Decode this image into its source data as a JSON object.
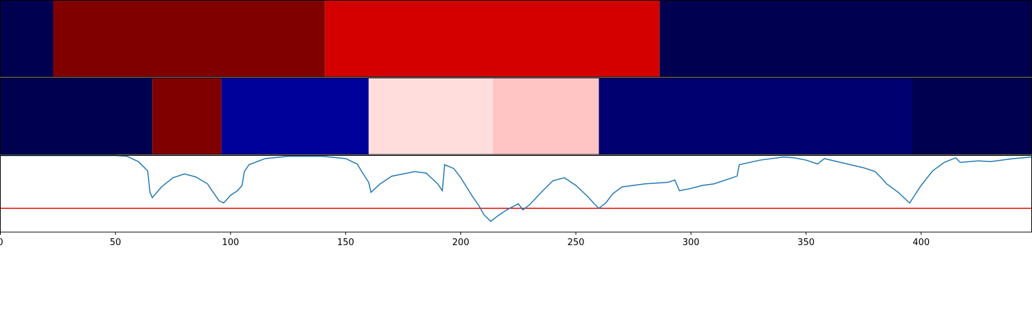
{
  "chart_data": {
    "type": "segmentation",
    "xlim": [
      0,
      448
    ],
    "xticks": [
      0,
      50,
      100,
      150,
      200,
      250,
      300,
      350,
      400
    ],
    "rows": [
      {
        "edges": [
          0,
          23,
          141,
          286.4,
          448
        ],
        "colors": [
          "#000050",
          "#800000",
          "#d40000",
          "#000050"
        ]
      },
      {
        "edges": [
          0,
          66,
          96,
          160,
          214,
          260,
          396,
          448
        ],
        "colors": [
          "#000050",
          "#800000",
          "#00009a",
          "#ffdddd",
          "#ffc4c4",
          "#000070",
          "#000050"
        ]
      }
    ],
    "line": {
      "color": "#1f77b4",
      "ylim": [
        0,
        1
      ],
      "x": [
        0,
        50,
        55,
        60,
        64,
        65,
        66,
        70,
        75,
        80,
        85,
        90,
        92,
        95,
        97,
        100,
        103,
        105,
        106,
        108,
        115,
        125,
        140,
        150,
        155,
        157,
        160,
        161,
        165,
        170,
        180,
        185,
        190,
        192,
        193,
        197,
        200,
        205,
        208,
        210,
        213,
        216,
        220,
        225,
        227,
        230,
        235,
        240,
        245,
        250,
        255,
        258,
        260,
        263,
        266,
        270,
        280,
        290,
        293,
        295,
        300,
        305,
        310,
        320,
        321,
        330,
        340,
        345,
        350,
        355,
        358,
        365,
        375,
        380,
        383,
        385,
        390,
        395,
        400,
        405,
        410,
        415,
        417,
        425,
        430,
        440,
        448
      ],
      "values": [
        1.0,
        1.0,
        0.99,
        0.92,
        0.8,
        0.52,
        0.45,
        0.59,
        0.71,
        0.76,
        0.72,
        0.63,
        0.54,
        0.41,
        0.38,
        0.48,
        0.54,
        0.61,
        0.79,
        0.88,
        0.96,
        0.99,
        0.99,
        0.96,
        0.89,
        0.79,
        0.65,
        0.52,
        0.63,
        0.73,
        0.79,
        0.77,
        0.63,
        0.54,
        0.88,
        0.83,
        0.71,
        0.47,
        0.34,
        0.23,
        0.14,
        0.21,
        0.29,
        0.37,
        0.29,
        0.36,
        0.52,
        0.67,
        0.71,
        0.61,
        0.47,
        0.37,
        0.31,
        0.38,
        0.5,
        0.59,
        0.63,
        0.65,
        0.68,
        0.54,
        0.57,
        0.61,
        0.63,
        0.73,
        0.88,
        0.94,
        0.98,
        0.97,
        0.94,
        0.89,
        0.96,
        0.91,
        0.84,
        0.79,
        0.7,
        0.63,
        0.52,
        0.38,
        0.61,
        0.8,
        0.91,
        0.97,
        0.91,
        0.93,
        0.92,
        0.96,
        0.98
      ],
      "threshold": 0.31,
      "threshold_color": "#e00000"
    }
  }
}
